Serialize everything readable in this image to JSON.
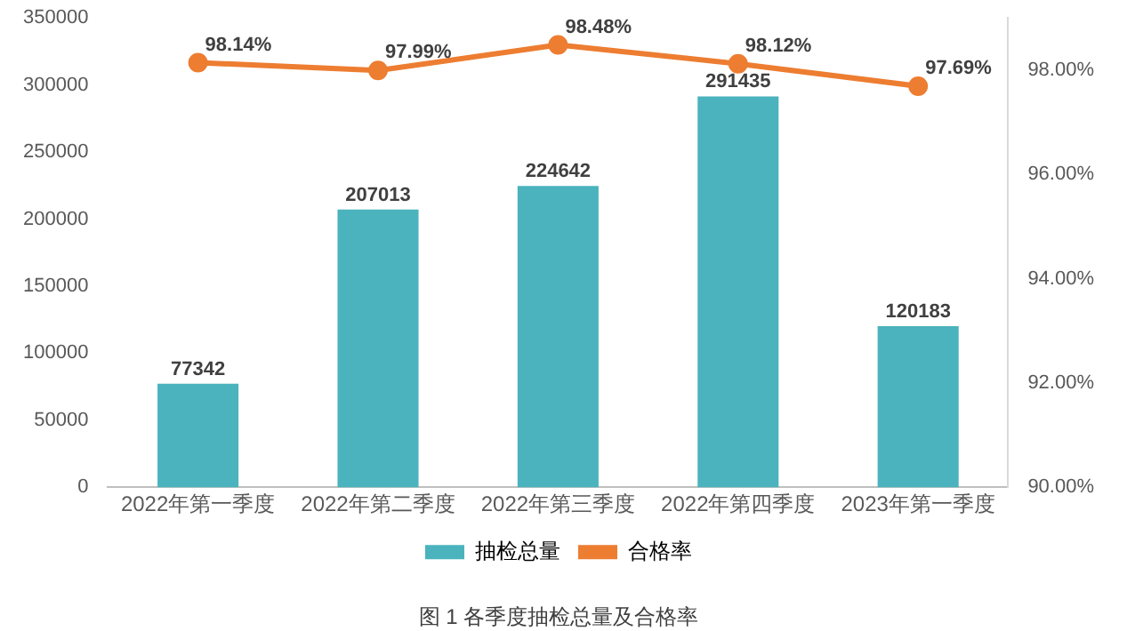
{
  "chart_data": {
    "type": "bar",
    "title": "图 1 各季度抽检总量及合格率",
    "categories": [
      "2022年第一季度",
      "2022年第二季度",
      "2022年第三季度",
      "2022年第四季度",
      "2023年第一季度"
    ],
    "series": [
      {
        "name": "抽检总量",
        "color": "#4bb3bd",
        "values": [
          77342,
          207013,
          224642,
          291435,
          120183
        ],
        "value_labels": [
          "77342",
          "207013",
          "224642",
          "291435",
          "120183"
        ]
      },
      {
        "name": "合格率",
        "type": "line",
        "axis": "y2",
        "color": "#ed7d31",
        "values": [
          98.14,
          97.99,
          98.48,
          98.12,
          97.69
        ],
        "value_labels": [
          "98.14%",
          "97.99%",
          "98.48%",
          "98.12%",
          "97.69%"
        ]
      }
    ],
    "ylim": [
      0,
      350000
    ],
    "yticks": [
      0,
      50000,
      100000,
      150000,
      200000,
      250000,
      300000,
      350000
    ],
    "y2lim": [
      90,
      99
    ],
    "y2ticks": [
      {
        "value": 90,
        "label": "90.00%"
      },
      {
        "value": 92,
        "label": "92.00%"
      },
      {
        "value": 94,
        "label": "94.00%"
      },
      {
        "value": 96,
        "label": "96.00%"
      },
      {
        "value": 98,
        "label": "98.00%"
      }
    ],
    "grid": false,
    "legend": "bottom",
    "marker": "circle",
    "line_style": "solid"
  }
}
